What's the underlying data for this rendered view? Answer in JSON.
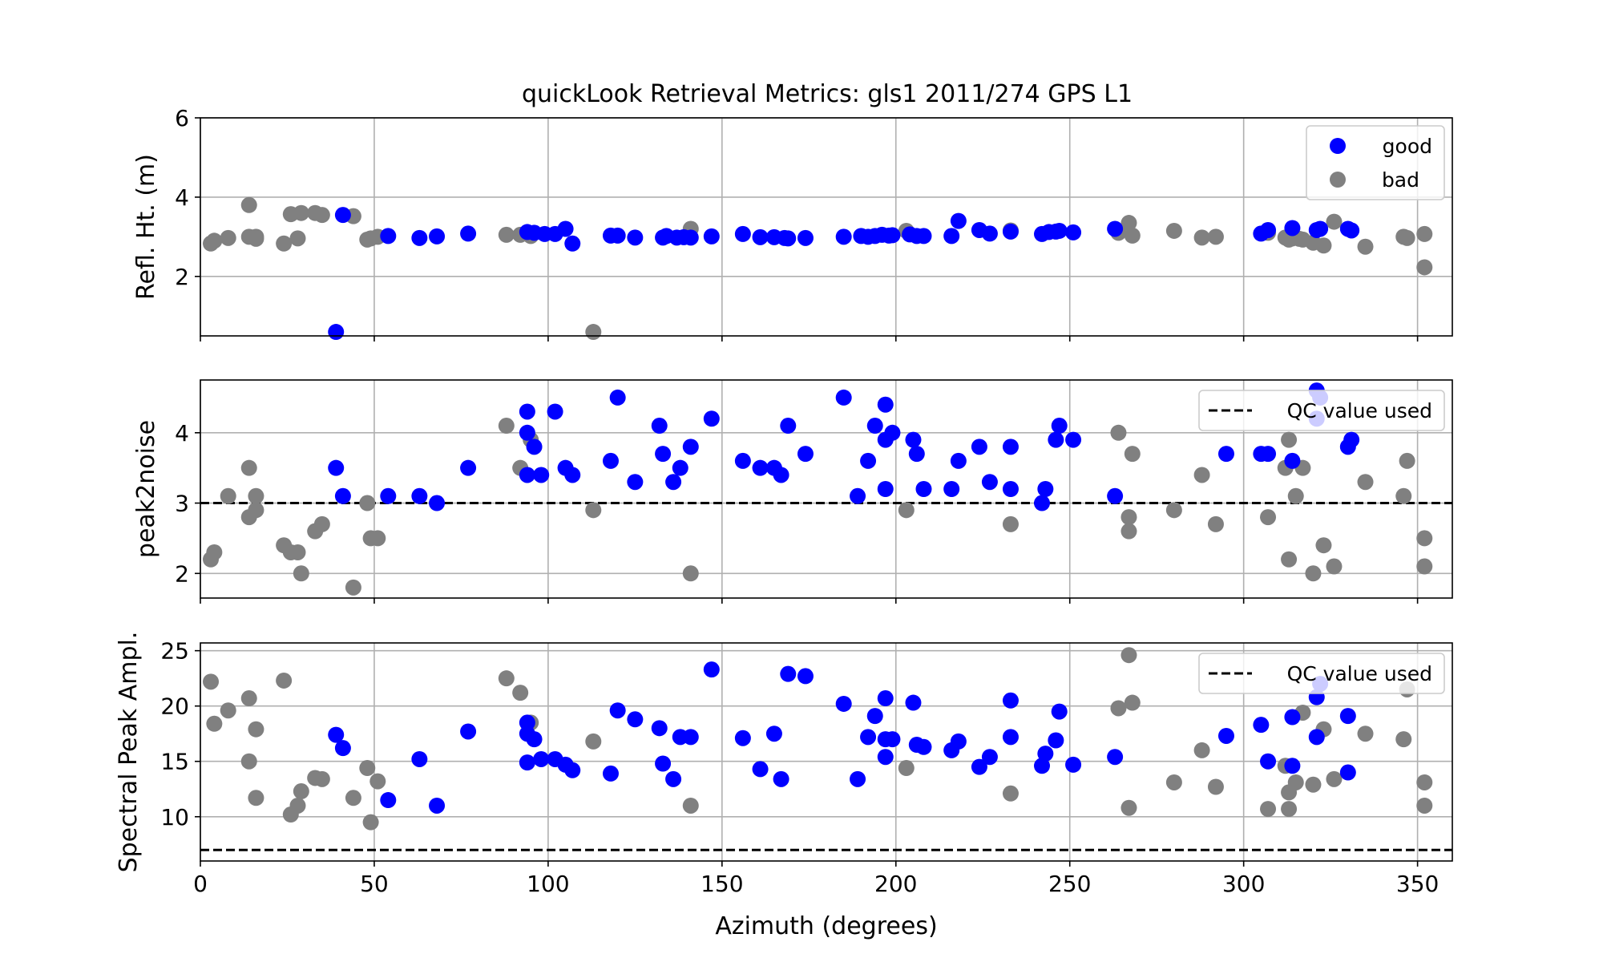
{
  "chart_data": {
    "type": "scatter",
    "title": "quickLook Retrieval Metrics: gls1 2011/274 GPS L1",
    "xlabel": "Azimuth (degrees)",
    "xlim": [
      0,
      360
    ],
    "x_ticks": [
      0,
      50,
      100,
      150,
      200,
      250,
      300,
      350
    ],
    "grid": true,
    "colors": {
      "good": "#0000ff",
      "bad": "#808080"
    },
    "panels": [
      {
        "id": "reflh",
        "ylabel": "Refl. Ht. (m)",
        "ylim": [
          0.5,
          6
        ],
        "y_ticks": [
          2,
          4,
          6
        ],
        "legend": {
          "placement": "top-right",
          "good_label": "good",
          "bad_label": "bad"
        },
        "good": [
          [
            39,
            0.6
          ],
          [
            41,
            3.55
          ],
          [
            54,
            3.02
          ],
          [
            63,
            2.97
          ],
          [
            68,
            3.01
          ],
          [
            77,
            3.08
          ],
          [
            94,
            3.12
          ],
          [
            96,
            3.1
          ],
          [
            99,
            3.07
          ],
          [
            102,
            3.07
          ],
          [
            105,
            3.2
          ],
          [
            107,
            2.83
          ],
          [
            118,
            3.03
          ],
          [
            120,
            3.03
          ],
          [
            125,
            2.98
          ],
          [
            133,
            2.98
          ],
          [
            134,
            3.02
          ],
          [
            137,
            2.98
          ],
          [
            139,
            2.99
          ],
          [
            141,
            2.98
          ],
          [
            147,
            3.01
          ],
          [
            156,
            3.07
          ],
          [
            161,
            2.99
          ],
          [
            165,
            2.99
          ],
          [
            168,
            2.97
          ],
          [
            169,
            2.96
          ],
          [
            174,
            2.97
          ],
          [
            185,
            3.0
          ],
          [
            190,
            3.02
          ],
          [
            192,
            3.0
          ],
          [
            194,
            3.02
          ],
          [
            196,
            3.05
          ],
          [
            198,
            3.03
          ],
          [
            199,
            3.04
          ],
          [
            204,
            3.06
          ],
          [
            206,
            3.02
          ],
          [
            208,
            3.02
          ],
          [
            216,
            3.02
          ],
          [
            218,
            3.4
          ],
          [
            224,
            3.17
          ],
          [
            227,
            3.08
          ],
          [
            233,
            3.13
          ],
          [
            242,
            3.07
          ],
          [
            244,
            3.12
          ],
          [
            246,
            3.13
          ],
          [
            247,
            3.15
          ],
          [
            251,
            3.11
          ],
          [
            263,
            3.2
          ],
          [
            305,
            3.08
          ],
          [
            307,
            3.17
          ],
          [
            314,
            3.22
          ],
          [
            321,
            3.17
          ],
          [
            322,
            3.2
          ],
          [
            330,
            3.2
          ],
          [
            331,
            3.16
          ]
        ],
        "bad": [
          [
            3,
            2.83
          ],
          [
            4,
            2.9
          ],
          [
            8,
            2.97
          ],
          [
            14,
            3.8
          ],
          [
            14,
            3.0
          ],
          [
            16,
            3.0
          ],
          [
            16,
            2.95
          ],
          [
            24,
            2.83
          ],
          [
            26,
            3.57
          ],
          [
            28,
            2.96
          ],
          [
            29,
            3.6
          ],
          [
            33,
            3.6
          ],
          [
            35,
            3.55
          ],
          [
            44,
            3.52
          ],
          [
            48,
            2.93
          ],
          [
            49,
            2.96
          ],
          [
            51,
            3.0
          ],
          [
            88,
            3.05
          ],
          [
            92,
            3.05
          ],
          [
            95,
            3.02
          ],
          [
            113,
            0.6
          ],
          [
            141,
            3.2
          ],
          [
            203,
            3.15
          ],
          [
            233,
            3.16
          ],
          [
            264,
            3.1
          ],
          [
            267,
            3.35
          ],
          [
            268,
            3.03
          ],
          [
            280,
            3.15
          ],
          [
            288,
            2.98
          ],
          [
            292,
            3.0
          ],
          [
            307,
            3.1
          ],
          [
            312,
            2.98
          ],
          [
            313,
            2.93
          ],
          [
            314,
            2.96
          ],
          [
            316,
            2.95
          ],
          [
            317,
            2.93
          ],
          [
            320,
            2.85
          ],
          [
            323,
            2.78
          ],
          [
            326,
            3.38
          ],
          [
            335,
            2.75
          ],
          [
            346,
            3.0
          ],
          [
            347,
            2.97
          ],
          [
            352,
            3.07
          ],
          [
            352,
            2.23
          ]
        ]
      },
      {
        "id": "p2n",
        "ylabel": "peak2noise",
        "ylim": [
          1.65,
          4.75
        ],
        "y_ticks": [
          2,
          3,
          4
        ],
        "qc_value": 3.0,
        "legend": {
          "placement": "top-right",
          "qc_label": "QC value used"
        },
        "good": [
          [
            39,
            3.5
          ],
          [
            41,
            3.1
          ],
          [
            54,
            3.1
          ],
          [
            63,
            3.1
          ],
          [
            68,
            3.0
          ],
          [
            77,
            3.5
          ],
          [
            94,
            4.3
          ],
          [
            94,
            4.0
          ],
          [
            94,
            3.4
          ],
          [
            96,
            3.8
          ],
          [
            98,
            3.4
          ],
          [
            102,
            4.3
          ],
          [
            105,
            3.5
          ],
          [
            107,
            3.4
          ],
          [
            118,
            3.6
          ],
          [
            120,
            4.5
          ],
          [
            125,
            3.3
          ],
          [
            132,
            4.1
          ],
          [
            133,
            3.7
          ],
          [
            136,
            3.3
          ],
          [
            138,
            3.5
          ],
          [
            141,
            3.8
          ],
          [
            147,
            4.2
          ],
          [
            156,
            3.6
          ],
          [
            161,
            3.5
          ],
          [
            165,
            3.5
          ],
          [
            167,
            3.4
          ],
          [
            169,
            4.1
          ],
          [
            174,
            3.7
          ],
          [
            185,
            4.5
          ],
          [
            189,
            3.1
          ],
          [
            192,
            3.6
          ],
          [
            194,
            4.1
          ],
          [
            197,
            4.4
          ],
          [
            197,
            3.9
          ],
          [
            197,
            3.2
          ],
          [
            199,
            4.0
          ],
          [
            205,
            3.9
          ],
          [
            206,
            3.7
          ],
          [
            208,
            3.2
          ],
          [
            216,
            3.2
          ],
          [
            218,
            3.6
          ],
          [
            224,
            3.8
          ],
          [
            227,
            3.3
          ],
          [
            233,
            3.8
          ],
          [
            233,
            3.2
          ],
          [
            242,
            3.0
          ],
          [
            243,
            3.2
          ],
          [
            246,
            3.9
          ],
          [
            247,
            4.1
          ],
          [
            251,
            3.9
          ],
          [
            263,
            3.1
          ],
          [
            295,
            3.7
          ],
          [
            305,
            3.7
          ],
          [
            307,
            3.7
          ],
          [
            314,
            3.6
          ],
          [
            321,
            4.6
          ],
          [
            321,
            4.2
          ],
          [
            322,
            4.5
          ],
          [
            330,
            3.8
          ],
          [
            331,
            3.9
          ]
        ],
        "bad": [
          [
            3,
            2.2
          ],
          [
            4,
            2.3
          ],
          [
            8,
            3.1
          ],
          [
            14,
            3.5
          ],
          [
            14,
            2.8
          ],
          [
            16,
            3.1
          ],
          [
            16,
            2.9
          ],
          [
            24,
            2.4
          ],
          [
            26,
            2.3
          ],
          [
            28,
            2.3
          ],
          [
            29,
            2.0
          ],
          [
            33,
            2.6
          ],
          [
            35,
            2.7
          ],
          [
            44,
            1.8
          ],
          [
            48,
            3.0
          ],
          [
            49,
            2.5
          ],
          [
            51,
            2.5
          ],
          [
            88,
            4.1
          ],
          [
            92,
            3.5
          ],
          [
            95,
            3.9
          ],
          [
            113,
            2.9
          ],
          [
            141,
            2.0
          ],
          [
            203,
            2.9
          ],
          [
            233,
            2.7
          ],
          [
            264,
            4.0
          ],
          [
            267,
            2.8
          ],
          [
            267,
            2.6
          ],
          [
            268,
            3.7
          ],
          [
            280,
            2.9
          ],
          [
            288,
            3.4
          ],
          [
            292,
            2.7
          ],
          [
            307,
            2.8
          ],
          [
            312,
            3.5
          ],
          [
            313,
            3.9
          ],
          [
            313,
            2.2
          ],
          [
            315,
            3.1
          ],
          [
            317,
            3.5
          ],
          [
            320,
            2.0
          ],
          [
            323,
            2.4
          ],
          [
            326,
            2.1
          ],
          [
            335,
            3.3
          ],
          [
            346,
            3.1
          ],
          [
            347,
            3.6
          ],
          [
            352,
            2.5
          ],
          [
            352,
            2.1
          ]
        ]
      },
      {
        "id": "amp",
        "ylabel": "Spectral Peak Ampl.",
        "ylim": [
          6,
          25.7
        ],
        "y_ticks": [
          10,
          15,
          20,
          25
        ],
        "qc_value": 7.0,
        "legend": {
          "placement": "top-right",
          "qc_label": "QC value used"
        },
        "good": [
          [
            39,
            17.4
          ],
          [
            41,
            16.2
          ],
          [
            54,
            11.5
          ],
          [
            63,
            15.2
          ],
          [
            68,
            11.0
          ],
          [
            77,
            17.7
          ],
          [
            94,
            18.5
          ],
          [
            94,
            17.5
          ],
          [
            94,
            14.9
          ],
          [
            96,
            17.0
          ],
          [
            98,
            15.2
          ],
          [
            102,
            15.2
          ],
          [
            105,
            14.7
          ],
          [
            107,
            14.2
          ],
          [
            118,
            13.9
          ],
          [
            120,
            19.6
          ],
          [
            125,
            18.8
          ],
          [
            132,
            18.0
          ],
          [
            133,
            14.8
          ],
          [
            136,
            13.4
          ],
          [
            138,
            17.2
          ],
          [
            141,
            17.2
          ],
          [
            147,
            23.3
          ],
          [
            156,
            17.1
          ],
          [
            161,
            14.3
          ],
          [
            165,
            17.5
          ],
          [
            167,
            13.4
          ],
          [
            169,
            22.9
          ],
          [
            174,
            22.7
          ],
          [
            185,
            20.2
          ],
          [
            189,
            13.4
          ],
          [
            192,
            17.2
          ],
          [
            194,
            19.1
          ],
          [
            197,
            20.7
          ],
          [
            197,
            17.0
          ],
          [
            197,
            15.4
          ],
          [
            199,
            17.0
          ],
          [
            205,
            20.3
          ],
          [
            206,
            16.5
          ],
          [
            208,
            16.3
          ],
          [
            216,
            16.0
          ],
          [
            218,
            16.8
          ],
          [
            224,
            14.5
          ],
          [
            227,
            15.4
          ],
          [
            233,
            20.5
          ],
          [
            233,
            17.2
          ],
          [
            242,
            14.6
          ],
          [
            243,
            15.7
          ],
          [
            246,
            16.9
          ],
          [
            247,
            19.5
          ],
          [
            251,
            14.7
          ],
          [
            263,
            15.4
          ],
          [
            295,
            17.3
          ],
          [
            305,
            18.3
          ],
          [
            307,
            15.0
          ],
          [
            314,
            19.0
          ],
          [
            314,
            14.6
          ],
          [
            321,
            20.8
          ],
          [
            321,
            17.2
          ],
          [
            322,
            22.0
          ],
          [
            330,
            19.1
          ],
          [
            330,
            14.0
          ]
        ],
        "bad": [
          [
            3,
            22.2
          ],
          [
            4,
            18.4
          ],
          [
            8,
            19.6
          ],
          [
            14,
            20.7
          ],
          [
            14,
            15.0
          ],
          [
            16,
            17.9
          ],
          [
            16,
            11.7
          ],
          [
            24,
            22.3
          ],
          [
            26,
            10.2
          ],
          [
            28,
            11.0
          ],
          [
            29,
            12.3
          ],
          [
            33,
            13.5
          ],
          [
            35,
            13.4
          ],
          [
            44,
            11.7
          ],
          [
            48,
            14.4
          ],
          [
            49,
            9.5
          ],
          [
            51,
            13.2
          ],
          [
            88,
            22.5
          ],
          [
            92,
            21.2
          ],
          [
            95,
            18.5
          ],
          [
            113,
            16.8
          ],
          [
            141,
            11.0
          ],
          [
            203,
            14.4
          ],
          [
            233,
            12.1
          ],
          [
            264,
            19.8
          ],
          [
            267,
            24.6
          ],
          [
            267,
            10.8
          ],
          [
            268,
            20.3
          ],
          [
            280,
            13.1
          ],
          [
            288,
            16.0
          ],
          [
            292,
            12.7
          ],
          [
            307,
            10.7
          ],
          [
            312,
            14.6
          ],
          [
            313,
            12.2
          ],
          [
            313,
            10.7
          ],
          [
            315,
            13.1
          ],
          [
            317,
            19.4
          ],
          [
            320,
            12.9
          ],
          [
            323,
            17.9
          ],
          [
            326,
            13.4
          ],
          [
            335,
            17.5
          ],
          [
            346,
            17.0
          ],
          [
            347,
            21.5
          ],
          [
            352,
            13.1
          ],
          [
            352,
            11.0
          ]
        ]
      }
    ]
  }
}
